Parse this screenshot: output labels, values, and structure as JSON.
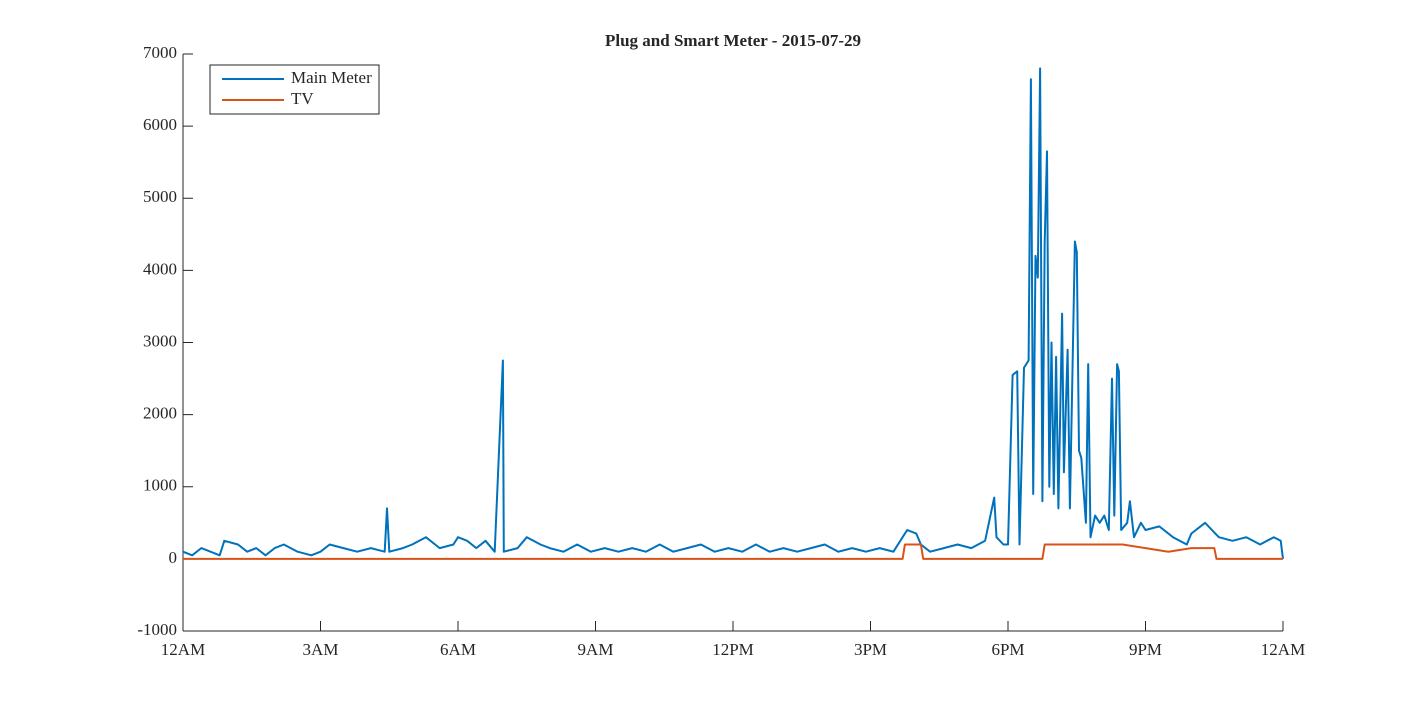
{
  "chart_data": {
    "type": "line",
    "title": "Plug and Smart Meter - 2015-07-29",
    "xlim": [
      0,
      24
    ],
    "xticks": [
      {
        "value": 0,
        "label": "12AM"
      },
      {
        "value": 3,
        "label": "3AM"
      },
      {
        "value": 6,
        "label": "6AM"
      },
      {
        "value": 9,
        "label": "9AM"
      },
      {
        "value": 12,
        "label": "12PM"
      },
      {
        "value": 15,
        "label": "3PM"
      },
      {
        "value": 18,
        "label": "6PM"
      },
      {
        "value": 21,
        "label": "9PM"
      },
      {
        "value": 24,
        "label": "12AM"
      }
    ],
    "ylim": [
      -1000,
      7000
    ],
    "yticks": [
      -1000,
      0,
      1000,
      2000,
      3000,
      4000,
      5000,
      6000,
      7000
    ],
    "grid": false,
    "legend": "top-left",
    "series": [
      {
        "name": "Main Meter",
        "color": "#0072bd",
        "x": [
          0,
          0.2,
          0.4,
          0.6,
          0.8,
          0.9,
          1.2,
          1.4,
          1.6,
          1.8,
          2.0,
          2.2,
          2.5,
          2.8,
          3.0,
          3.2,
          3.5,
          3.8,
          4.1,
          4.4,
          4.45,
          4.5,
          4.8,
          5.0,
          5.3,
          5.6,
          5.9,
          6.0,
          6.2,
          6.4,
          6.6,
          6.8,
          6.98,
          7.0,
          7.3,
          7.5,
          7.8,
          8.0,
          8.3,
          8.6,
          8.9,
          9.2,
          9.5,
          9.8,
          10.1,
          10.4,
          10.7,
          11.0,
          11.3,
          11.6,
          11.9,
          12.2,
          12.5,
          12.8,
          13.1,
          13.4,
          13.7,
          14.0,
          14.3,
          14.6,
          14.9,
          15.2,
          15.5,
          15.7,
          15.8,
          16.0,
          16.1,
          16.3,
          16.6,
          16.9,
          17.2,
          17.5,
          17.7,
          17.75,
          17.9,
          18.0,
          18.1,
          18.2,
          18.25,
          18.35,
          18.45,
          18.5,
          18.55,
          18.6,
          18.65,
          18.7,
          18.75,
          18.8,
          18.85,
          18.9,
          18.95,
          19.0,
          19.05,
          19.1,
          19.18,
          19.22,
          19.3,
          19.35,
          19.46,
          19.5,
          19.55,
          19.6,
          19.7,
          19.75,
          19.8,
          19.9,
          20.0,
          20.1,
          20.2,
          20.27,
          20.32,
          20.38,
          20.42,
          20.47,
          20.6,
          20.66,
          20.75,
          20.9,
          21.0,
          21.3,
          21.6,
          21.9,
          22.0,
          22.3,
          22.6,
          22.9,
          23.2,
          23.5,
          23.8,
          23.95,
          24.0
        ],
        "values": [
          100,
          50,
          150,
          100,
          50,
          250,
          200,
          100,
          150,
          50,
          150,
          200,
          100,
          50,
          100,
          200,
          150,
          100,
          150,
          100,
          700,
          100,
          150,
          200,
          300,
          150,
          200,
          300,
          250,
          150,
          250,
          100,
          2750,
          100,
          150,
          300,
          200,
          150,
          100,
          200,
          100,
          150,
          100,
          150,
          100,
          200,
          100,
          150,
          200,
          100,
          150,
          100,
          200,
          100,
          150,
          100,
          150,
          200,
          100,
          150,
          100,
          150,
          100,
          300,
          400,
          350,
          200,
          100,
          150,
          200,
          150,
          250,
          850,
          300,
          200,
          200,
          2550,
          2600,
          200,
          2650,
          2750,
          6650,
          900,
          4200,
          3900,
          6800,
          800,
          4400,
          5650,
          1000,
          3000,
          900,
          2800,
          700,
          3400,
          1200,
          2900,
          700,
          4400,
          4250,
          1500,
          1400,
          500,
          2700,
          300,
          600,
          500,
          600,
          400,
          2500,
          600,
          2700,
          2600,
          400,
          500,
          800,
          300,
          500,
          400,
          450,
          300,
          200,
          350,
          500,
          300,
          250,
          300,
          200,
          300,
          250,
          0
        ]
      },
      {
        "name": "TV",
        "color": "#d95319",
        "x": [
          0,
          15.7,
          15.75,
          16.1,
          16.15,
          18.75,
          18.8,
          20.5,
          21.0,
          21.5,
          22.0,
          22.5,
          22.55,
          24.0
        ],
        "values": [
          0,
          0,
          200,
          200,
          0,
          0,
          200,
          200,
          150,
          100,
          150,
          150,
          0,
          0
        ]
      }
    ]
  }
}
